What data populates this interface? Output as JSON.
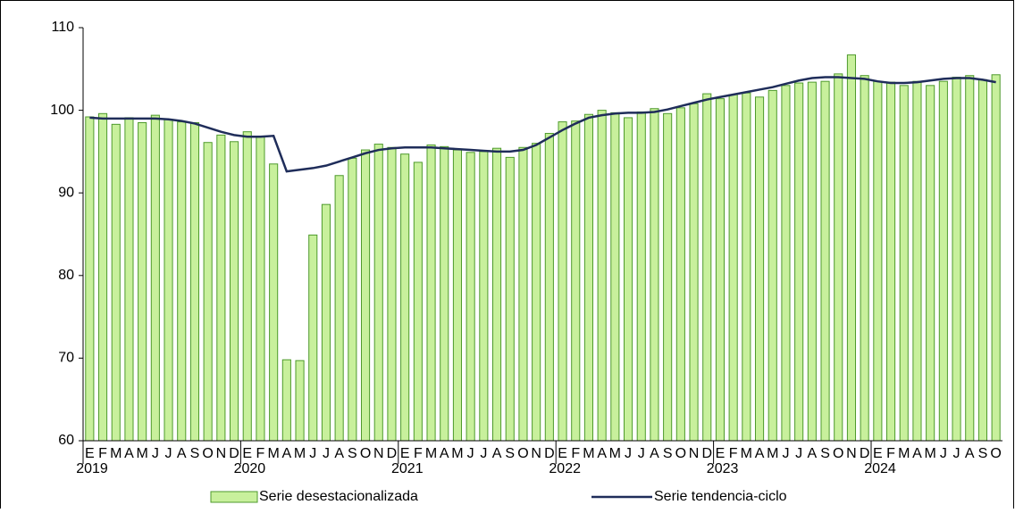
{
  "chart_data": {
    "type": "bar_line",
    "categories": [
      "E",
      "F",
      "M",
      "A",
      "M",
      "J",
      "J",
      "A",
      "S",
      "O",
      "N",
      "D",
      "E",
      "F",
      "M",
      "A",
      "M",
      "J",
      "J",
      "A",
      "S",
      "O",
      "N",
      "D",
      "E",
      "F",
      "M",
      "A",
      "M",
      "J",
      "J",
      "A",
      "S",
      "O",
      "N",
      "D",
      "E",
      "F",
      "M",
      "A",
      "M",
      "J",
      "J",
      "A",
      "S",
      "O",
      "N",
      "D",
      "E",
      "F",
      "M",
      "A",
      "M",
      "J",
      "J",
      "A",
      "S",
      "O",
      "N",
      "D",
      "E",
      "F",
      "M",
      "A",
      "M",
      "J",
      "J",
      "A",
      "S",
      "O"
    ],
    "years": [
      "2019",
      "2020",
      "2021",
      "2022",
      "2023",
      "2024"
    ],
    "series": [
      {
        "name": "Serie desestacionalizada",
        "type": "bar",
        "color": "#c8f09c",
        "values": [
          99.2,
          99.6,
          98.3,
          99.1,
          98.5,
          99.4,
          98.9,
          98.6,
          98.5,
          96.1,
          97.0,
          96.2,
          97.4,
          96.8,
          93.5,
          69.8,
          69.7,
          84.9,
          88.6,
          92.1,
          94.2,
          95.2,
          95.9,
          95.5,
          94.7,
          93.7,
          95.8,
          95.6,
          95.2,
          94.9,
          95.0,
          95.4,
          94.3,
          95.5,
          96.0,
          97.2,
          98.6,
          98.7,
          99.5,
          100.0,
          99.7,
          99.1,
          99.8,
          100.2,
          99.6,
          100.3,
          100.8,
          102.0,
          101.4,
          101.9,
          102.1,
          101.6,
          102.4,
          103.0,
          103.3,
          103.4,
          103.5,
          104.4,
          106.7,
          104.2,
          103.5,
          103.4,
          103.0,
          103.5,
          103.0,
          103.5,
          104.0,
          104.2,
          103.7,
          104.3
        ]
      },
      {
        "name": "Serie tendencia-ciclo",
        "type": "line",
        "color": "#1f2d5a",
        "values": [
          99.1,
          99.0,
          99.0,
          99.0,
          99.0,
          99.0,
          98.9,
          98.7,
          98.4,
          97.9,
          97.4,
          97.0,
          96.8,
          96.8,
          96.9,
          92.6,
          92.8,
          93.0,
          93.3,
          93.8,
          94.3,
          94.8,
          95.2,
          95.4,
          95.5,
          95.5,
          95.5,
          95.4,
          95.3,
          95.2,
          95.1,
          95.0,
          95.0,
          95.2,
          95.8,
          96.7,
          97.6,
          98.4,
          99.1,
          99.4,
          99.6,
          99.7,
          99.7,
          99.8,
          100.1,
          100.5,
          100.9,
          101.3,
          101.6,
          101.9,
          102.2,
          102.5,
          102.8,
          103.2,
          103.6,
          103.9,
          104.0,
          104.0,
          103.9,
          103.8,
          103.5,
          103.3,
          103.3,
          103.4,
          103.6,
          103.8,
          103.9,
          103.9,
          103.7,
          103.4
        ]
      }
    ],
    "ylim": [
      60,
      110
    ],
    "yticks": [
      60,
      70,
      80,
      90,
      100,
      110
    ],
    "grid": false
  }
}
